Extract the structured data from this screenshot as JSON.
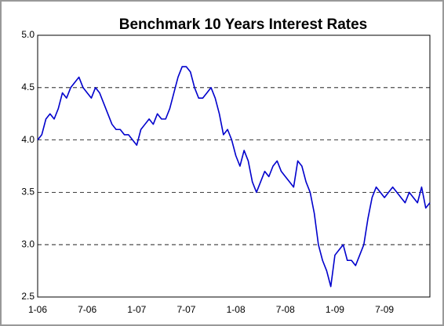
{
  "chart_data": {
    "type": "line",
    "title": "Benchmark 10 Years Interest Rates",
    "categories": [
      "1-06",
      null,
      null,
      null,
      null,
      null,
      null,
      null,
      null,
      null,
      null,
      null,
      "7-06",
      null,
      null,
      null,
      null,
      null,
      null,
      null,
      null,
      null,
      null,
      null,
      "1-07",
      null,
      null,
      null,
      null,
      null,
      null,
      null,
      null,
      null,
      null,
      null,
      "7-07",
      null,
      null,
      null,
      null,
      null,
      null,
      null,
      null,
      null,
      null,
      null,
      "1-08",
      null,
      null,
      null,
      null,
      null,
      null,
      null,
      null,
      null,
      null,
      null,
      "7-08",
      null,
      null,
      null,
      null,
      null,
      null,
      null,
      null,
      null,
      null,
      null,
      "1-09",
      null,
      null,
      null,
      null,
      null,
      null,
      null,
      null,
      null,
      null,
      null,
      "7-09",
      null,
      null,
      null,
      null,
      null,
      null,
      null,
      null,
      null,
      null,
      null
    ],
    "values": [
      4.0,
      4.05,
      4.2,
      4.25,
      4.2,
      4.3,
      4.45,
      4.4,
      4.5,
      4.55,
      4.6,
      4.5,
      4.45,
      4.4,
      4.5,
      4.45,
      4.35,
      4.25,
      4.15,
      4.1,
      4.1,
      4.05,
      4.05,
      4.0,
      3.95,
      4.1,
      4.15,
      4.2,
      4.15,
      4.25,
      4.2,
      4.2,
      4.3,
      4.45,
      4.6,
      4.7,
      4.7,
      4.65,
      4.5,
      4.4,
      4.4,
      4.45,
      4.5,
      4.4,
      4.25,
      4.05,
      4.1,
      4.0,
      3.85,
      3.75,
      3.9,
      3.8,
      3.6,
      3.5,
      3.6,
      3.7,
      3.65,
      3.75,
      3.8,
      3.7,
      3.65,
      3.6,
      3.55,
      3.8,
      3.75,
      3.6,
      3.5,
      3.3,
      3.0,
      2.85,
      2.75,
      2.6,
      2.9,
      2.95,
      3.0,
      2.85,
      2.85,
      2.8,
      2.9,
      3.0,
      3.25,
      3.45,
      3.55,
      3.5,
      3.45,
      3.5,
      3.55,
      3.5,
      3.45,
      3.4,
      3.5,
      3.45,
      3.4,
      3.55,
      3.35,
      3.4
    ],
    "color": "#0000cc",
    "ylim": [
      2.5,
      5.0
    ],
    "yticks": [
      {
        "value": 2.5,
        "label": "2.5"
      },
      {
        "value": 3,
        "label": "3.0"
      },
      {
        "value": 3.5,
        "label": "3.5"
      },
      {
        "value": 4,
        "label": "4.0"
      },
      {
        "value": 4.5,
        "label": "4.5"
      },
      {
        "value": 5,
        "label": "5.0"
      }
    ],
    "grid": true
  }
}
